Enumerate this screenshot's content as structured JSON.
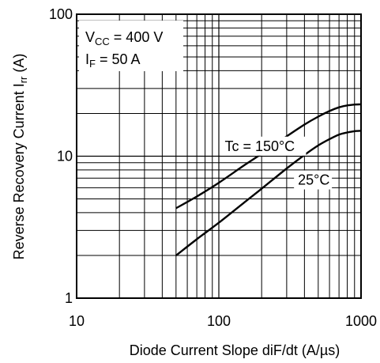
{
  "chart_data": {
    "type": "line",
    "x_scale": "log",
    "y_scale": "log",
    "xlim": [
      10,
      1000
    ],
    "ylim": [
      1,
      100
    ],
    "grid": true,
    "xlabel": "Diode Current Slope   diF/dt  (A/µs)",
    "ylabel": "Reverse Recovery Current   I",
    "ylabel_sub": "rr",
    "ylabel_unit": "  (A)",
    "x_ticks": [
      {
        "value": 10,
        "label": "10"
      },
      {
        "value": 100,
        "label": "100"
      },
      {
        "value": 1000,
        "label": "1000"
      }
    ],
    "y_ticks": [
      {
        "value": 1,
        "label": "1"
      },
      {
        "value": 10,
        "label": "10"
      },
      {
        "value": 100,
        "label": "100"
      }
    ],
    "conditions": [
      {
        "main": "V",
        "sub": "CC",
        "rest": " = 400 V"
      },
      {
        "main": "I",
        "sub": "F",
        "rest": " = 50 A"
      }
    ],
    "series": [
      {
        "name": "Tc = 150°C",
        "label_at": {
          "x": 110,
          "y": 10.9
        },
        "x": [
          50,
          70,
          100,
          150,
          200,
          300,
          400,
          500,
          600,
          700,
          800,
          900,
          1000
        ],
        "y": [
          4.3,
          5.2,
          6.5,
          8.6,
          10.4,
          13.8,
          16.7,
          19.0,
          20.8,
          22.1,
          22.8,
          23.1,
          23.2
        ]
      },
      {
        "name": "25°C",
        "label_at": {
          "x": 360,
          "y": 6.3
        },
        "x": [
          50,
          70,
          100,
          150,
          200,
          300,
          400,
          500,
          600,
          700,
          800,
          900,
          1000
        ],
        "y": [
          2.0,
          2.6,
          3.4,
          4.7,
          5.9,
          8.2,
          10.2,
          11.9,
          13.2,
          14.2,
          14.7,
          15.0,
          15.1
        ]
      }
    ]
  }
}
